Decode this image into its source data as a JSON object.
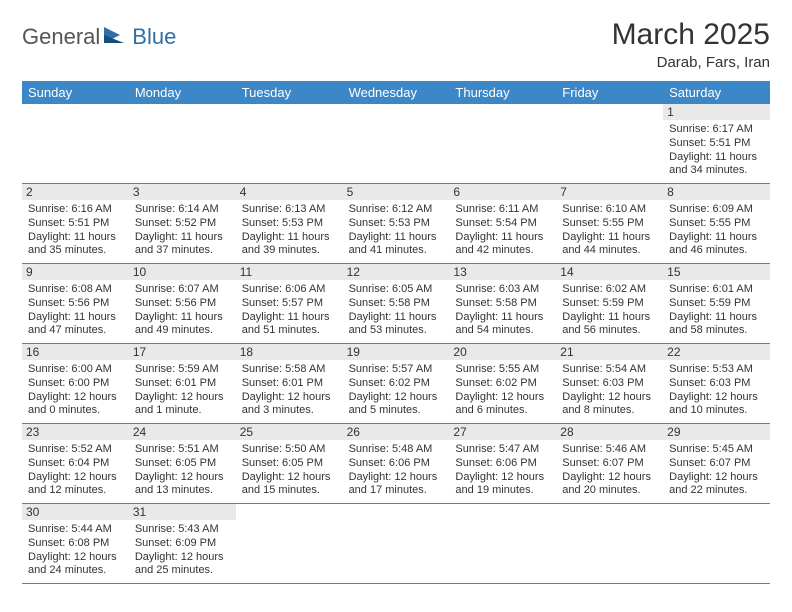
{
  "logo": {
    "text1": "General",
    "text2": "Blue"
  },
  "header": {
    "month_title": "March 2025",
    "location": "Darab, Fars, Iran"
  },
  "colors": {
    "header_bg": "#3c87c7",
    "header_fg": "#ffffff",
    "daynum_bg": "#e9e9e9",
    "border": "#3c87c7",
    "logo_gray": "#555555",
    "logo_blue": "#2f6fa8",
    "text": "#333333",
    "background": "#ffffff"
  },
  "typography": {
    "month_title_fontsize": 30,
    "location_fontsize": 15,
    "dow_fontsize": 13,
    "daynum_fontsize": 12,
    "body_fontsize": 11,
    "font_family": "Arial"
  },
  "calendar": {
    "type": "table",
    "columns": 7,
    "rows": 6,
    "dow": [
      "Sunday",
      "Monday",
      "Tuesday",
      "Wednesday",
      "Thursday",
      "Friday",
      "Saturday"
    ],
    "weeks": [
      [
        null,
        null,
        null,
        null,
        null,
        null,
        {
          "n": "1",
          "sunrise": "Sunrise: 6:17 AM",
          "sunset": "Sunset: 5:51 PM",
          "dl1": "Daylight: 11 hours",
          "dl2": "and 34 minutes."
        }
      ],
      [
        {
          "n": "2",
          "sunrise": "Sunrise: 6:16 AM",
          "sunset": "Sunset: 5:51 PM",
          "dl1": "Daylight: 11 hours",
          "dl2": "and 35 minutes."
        },
        {
          "n": "3",
          "sunrise": "Sunrise: 6:14 AM",
          "sunset": "Sunset: 5:52 PM",
          "dl1": "Daylight: 11 hours",
          "dl2": "and 37 minutes."
        },
        {
          "n": "4",
          "sunrise": "Sunrise: 6:13 AM",
          "sunset": "Sunset: 5:53 PM",
          "dl1": "Daylight: 11 hours",
          "dl2": "and 39 minutes."
        },
        {
          "n": "5",
          "sunrise": "Sunrise: 6:12 AM",
          "sunset": "Sunset: 5:53 PM",
          "dl1": "Daylight: 11 hours",
          "dl2": "and 41 minutes."
        },
        {
          "n": "6",
          "sunrise": "Sunrise: 6:11 AM",
          "sunset": "Sunset: 5:54 PM",
          "dl1": "Daylight: 11 hours",
          "dl2": "and 42 minutes."
        },
        {
          "n": "7",
          "sunrise": "Sunrise: 6:10 AM",
          "sunset": "Sunset: 5:55 PM",
          "dl1": "Daylight: 11 hours",
          "dl2": "and 44 minutes."
        },
        {
          "n": "8",
          "sunrise": "Sunrise: 6:09 AM",
          "sunset": "Sunset: 5:55 PM",
          "dl1": "Daylight: 11 hours",
          "dl2": "and 46 minutes."
        }
      ],
      [
        {
          "n": "9",
          "sunrise": "Sunrise: 6:08 AM",
          "sunset": "Sunset: 5:56 PM",
          "dl1": "Daylight: 11 hours",
          "dl2": "and 47 minutes."
        },
        {
          "n": "10",
          "sunrise": "Sunrise: 6:07 AM",
          "sunset": "Sunset: 5:56 PM",
          "dl1": "Daylight: 11 hours",
          "dl2": "and 49 minutes."
        },
        {
          "n": "11",
          "sunrise": "Sunrise: 6:06 AM",
          "sunset": "Sunset: 5:57 PM",
          "dl1": "Daylight: 11 hours",
          "dl2": "and 51 minutes."
        },
        {
          "n": "12",
          "sunrise": "Sunrise: 6:05 AM",
          "sunset": "Sunset: 5:58 PM",
          "dl1": "Daylight: 11 hours",
          "dl2": "and 53 minutes."
        },
        {
          "n": "13",
          "sunrise": "Sunrise: 6:03 AM",
          "sunset": "Sunset: 5:58 PM",
          "dl1": "Daylight: 11 hours",
          "dl2": "and 54 minutes."
        },
        {
          "n": "14",
          "sunrise": "Sunrise: 6:02 AM",
          "sunset": "Sunset: 5:59 PM",
          "dl1": "Daylight: 11 hours",
          "dl2": "and 56 minutes."
        },
        {
          "n": "15",
          "sunrise": "Sunrise: 6:01 AM",
          "sunset": "Sunset: 5:59 PM",
          "dl1": "Daylight: 11 hours",
          "dl2": "and 58 minutes."
        }
      ],
      [
        {
          "n": "16",
          "sunrise": "Sunrise: 6:00 AM",
          "sunset": "Sunset: 6:00 PM",
          "dl1": "Daylight: 12 hours",
          "dl2": "and 0 minutes."
        },
        {
          "n": "17",
          "sunrise": "Sunrise: 5:59 AM",
          "sunset": "Sunset: 6:01 PM",
          "dl1": "Daylight: 12 hours",
          "dl2": "and 1 minute."
        },
        {
          "n": "18",
          "sunrise": "Sunrise: 5:58 AM",
          "sunset": "Sunset: 6:01 PM",
          "dl1": "Daylight: 12 hours",
          "dl2": "and 3 minutes."
        },
        {
          "n": "19",
          "sunrise": "Sunrise: 5:57 AM",
          "sunset": "Sunset: 6:02 PM",
          "dl1": "Daylight: 12 hours",
          "dl2": "and 5 minutes."
        },
        {
          "n": "20",
          "sunrise": "Sunrise: 5:55 AM",
          "sunset": "Sunset: 6:02 PM",
          "dl1": "Daylight: 12 hours",
          "dl2": "and 6 minutes."
        },
        {
          "n": "21",
          "sunrise": "Sunrise: 5:54 AM",
          "sunset": "Sunset: 6:03 PM",
          "dl1": "Daylight: 12 hours",
          "dl2": "and 8 minutes."
        },
        {
          "n": "22",
          "sunrise": "Sunrise: 5:53 AM",
          "sunset": "Sunset: 6:03 PM",
          "dl1": "Daylight: 12 hours",
          "dl2": "and 10 minutes."
        }
      ],
      [
        {
          "n": "23",
          "sunrise": "Sunrise: 5:52 AM",
          "sunset": "Sunset: 6:04 PM",
          "dl1": "Daylight: 12 hours",
          "dl2": "and 12 minutes."
        },
        {
          "n": "24",
          "sunrise": "Sunrise: 5:51 AM",
          "sunset": "Sunset: 6:05 PM",
          "dl1": "Daylight: 12 hours",
          "dl2": "and 13 minutes."
        },
        {
          "n": "25",
          "sunrise": "Sunrise: 5:50 AM",
          "sunset": "Sunset: 6:05 PM",
          "dl1": "Daylight: 12 hours",
          "dl2": "and 15 minutes."
        },
        {
          "n": "26",
          "sunrise": "Sunrise: 5:48 AM",
          "sunset": "Sunset: 6:06 PM",
          "dl1": "Daylight: 12 hours",
          "dl2": "and 17 minutes."
        },
        {
          "n": "27",
          "sunrise": "Sunrise: 5:47 AM",
          "sunset": "Sunset: 6:06 PM",
          "dl1": "Daylight: 12 hours",
          "dl2": "and 19 minutes."
        },
        {
          "n": "28",
          "sunrise": "Sunrise: 5:46 AM",
          "sunset": "Sunset: 6:07 PM",
          "dl1": "Daylight: 12 hours",
          "dl2": "and 20 minutes."
        },
        {
          "n": "29",
          "sunrise": "Sunrise: 5:45 AM",
          "sunset": "Sunset: 6:07 PM",
          "dl1": "Daylight: 12 hours",
          "dl2": "and 22 minutes."
        }
      ],
      [
        {
          "n": "30",
          "sunrise": "Sunrise: 5:44 AM",
          "sunset": "Sunset: 6:08 PM",
          "dl1": "Daylight: 12 hours",
          "dl2": "and 24 minutes."
        },
        {
          "n": "31",
          "sunrise": "Sunrise: 5:43 AM",
          "sunset": "Sunset: 6:09 PM",
          "dl1": "Daylight: 12 hours",
          "dl2": "and 25 minutes."
        },
        null,
        null,
        null,
        null,
        null
      ]
    ]
  }
}
